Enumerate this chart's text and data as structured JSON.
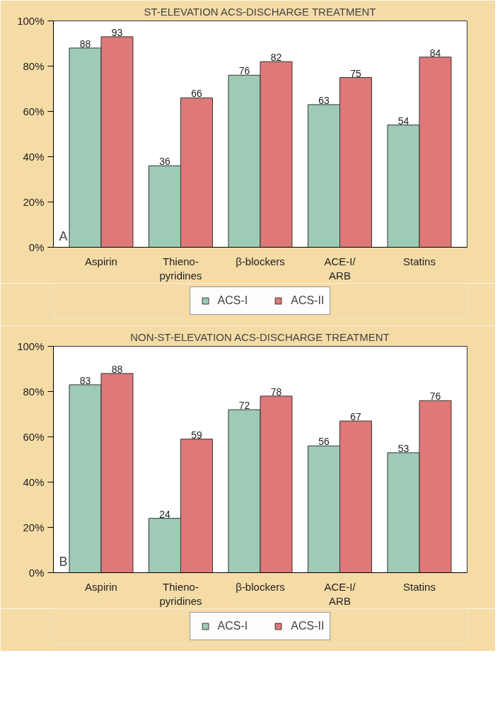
{
  "chart_data": [
    {
      "type": "bar",
      "title": "ST-ELEVATION ACS-DISCHARGE TREATMENT",
      "categories": [
        "Aspirin",
        "Thieno-\npyridines",
        "β-blockers",
        "ACE-I/\nARB",
        "Statins"
      ],
      "series": [
        {
          "name": "ACS-I",
          "color": "#9dcbb5",
          "values": [
            88,
            36,
            76,
            63,
            54
          ]
        },
        {
          "name": "ACS-II",
          "color": "#df7878",
          "values": [
            93,
            66,
            82,
            75,
            84
          ]
        }
      ],
      "ylim": [
        0,
        100
      ],
      "yticks": [
        {
          "value": 0,
          "label": "0%"
        },
        {
          "value": 20,
          "label": "20%"
        },
        {
          "value": 40,
          "label": "40%"
        },
        {
          "value": 60,
          "label": "60%"
        },
        {
          "value": 80,
          "label": "80%"
        },
        {
          "value": 100,
          "label": "100%"
        }
      ],
      "data_labels": true,
      "legend": "bottom",
      "grid": false,
      "annotations": [
        "A"
      ]
    },
    {
      "type": "bar",
      "title": "NON-ST-ELEVATION ACS-DISCHARGE TREATMENT",
      "categories": [
        "Aspirin",
        "Thieno-\npyridines",
        "β-blockers",
        "ACE-I/\nARB",
        "Statins"
      ],
      "series": [
        {
          "name": "ACS-I",
          "color": "#9dcbb5",
          "values": [
            83,
            24,
            72,
            56,
            53
          ]
        },
        {
          "name": "ACS-II",
          "color": "#df7878",
          "values": [
            88,
            59,
            78,
            67,
            76
          ]
        }
      ],
      "ylim": [
        0,
        100
      ],
      "yticks": [
        {
          "value": 0,
          "label": "0%"
        },
        {
          "value": 20,
          "label": "20%"
        },
        {
          "value": 40,
          "label": "40%"
        },
        {
          "value": 60,
          "label": "60%"
        },
        {
          "value": 80,
          "label": "80%"
        },
        {
          "value": 100,
          "label": "100%"
        }
      ],
      "data_labels": true,
      "legend": "bottom",
      "grid": false,
      "annotations": [
        "B"
      ]
    }
  ]
}
